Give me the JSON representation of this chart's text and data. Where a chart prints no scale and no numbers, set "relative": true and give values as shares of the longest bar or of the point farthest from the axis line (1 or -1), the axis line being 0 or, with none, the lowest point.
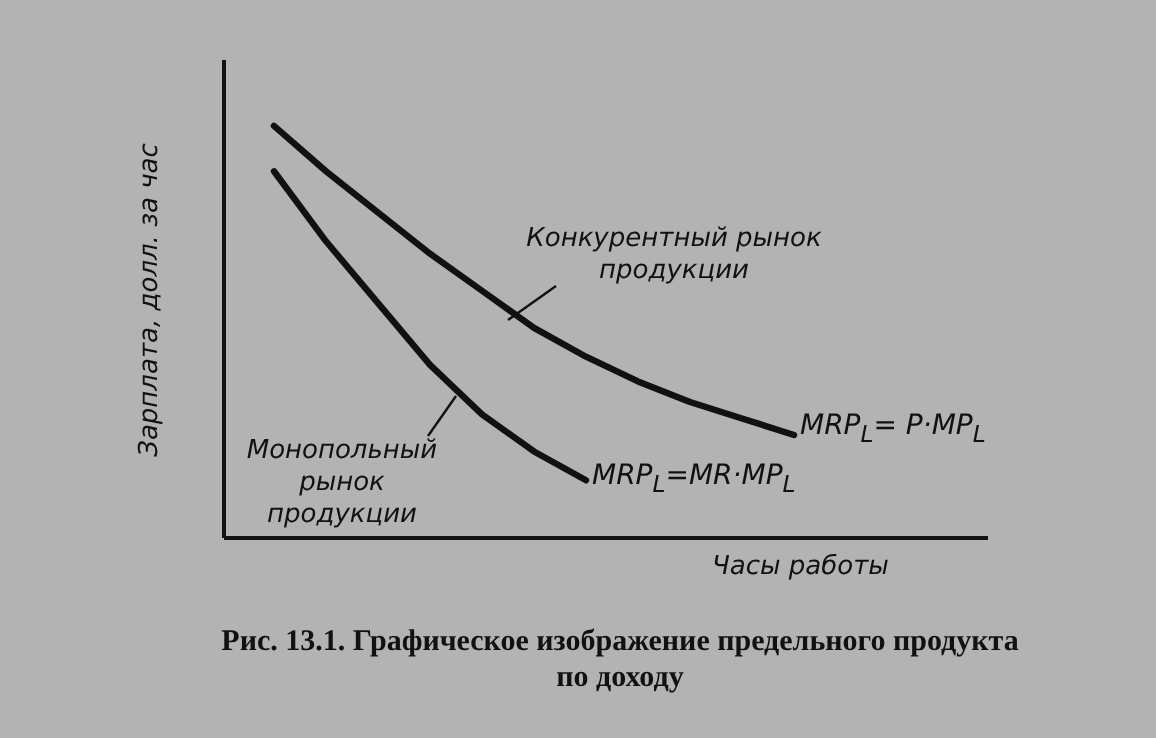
{
  "chart_data": {
    "type": "line",
    "relative": true,
    "title": "Рис. 13.1. Графическое изображение предельного продукта по доходу",
    "xlabel": "Часы работы",
    "ylabel": "Зарплата, долл. за час",
    "categories": [
      null,
      null,
      null,
      null,
      null,
      null,
      null,
      null,
      null,
      null,
      null
    ],
    "series": [
      {
        "name": "MRP$_{L}$= P·MP$_{L}$",
        "color": "#111111",
        "values": [
          1,
          0.89,
          0.79,
          0.69,
          0.6,
          0.51,
          0.44,
          0.38,
          0.33,
          0.29,
          0.25
        ]
      },
      {
        "name": "MRP$_{L}$=MR·MP$_{L}$",
        "color": "#111111",
        "values": [
          0.89,
          0.72,
          0.57,
          0.42,
          0.3,
          0.21,
          0.14,
          null,
          null,
          null,
          null
        ]
      }
    ],
    "annotations": [
      "Конкурентный рынок продукции",
      "Монопольный рынок продукции"
    ],
    "grid": false,
    "legend": false,
    "marker": "none",
    "line_style": "solid"
  }
}
